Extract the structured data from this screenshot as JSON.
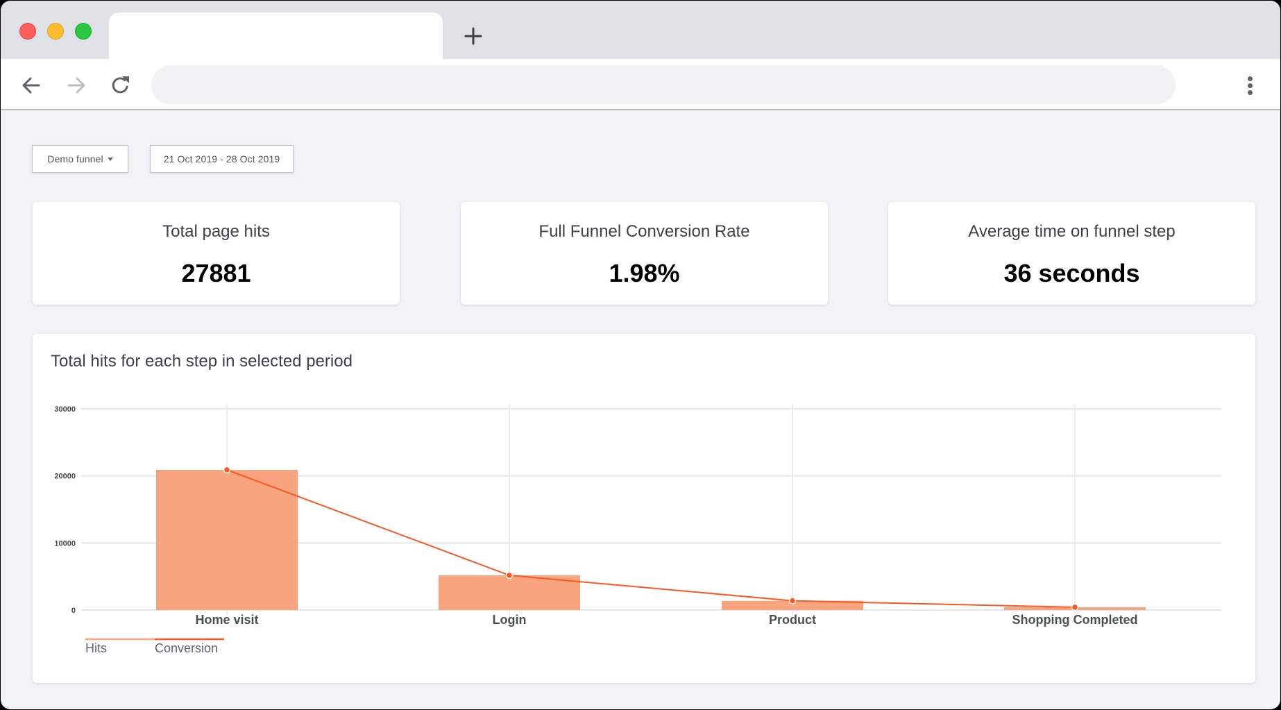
{
  "browser": {
    "traffic_lights": [
      {
        "name": "close",
        "color": "#ff5f57"
      },
      {
        "name": "minimize",
        "color": "#febc2e"
      },
      {
        "name": "maximize",
        "color": "#28c840"
      }
    ],
    "tab_title": "",
    "new_tab_icon": "plus-icon",
    "back_icon": "arrow-left-icon",
    "forward_icon": "arrow-right-icon",
    "reload_icon": "reload-icon",
    "address_bar": {
      "value": "",
      "placeholder": ""
    },
    "menu_icon": "kebab-menu-icon"
  },
  "filters": {
    "funnel_select": "Demo funnel",
    "date_range": "21 Oct 2019 - 28 Oct 2019"
  },
  "stats": [
    {
      "label": "Total page hits",
      "value": "27881"
    },
    {
      "label": "Full Funnel Conversion Rate",
      "value": "1.98%"
    },
    {
      "label": "Average time on funnel step",
      "value": "36 seconds"
    }
  ],
  "chart": {
    "title": "Total hits for each step in selected period",
    "legend": [
      {
        "label": "Hits",
        "color": "#f8a47f"
      },
      {
        "label": "Conversion",
        "color": "#fc5722"
      }
    ]
  },
  "chart_data": {
    "type": "bar",
    "title": "Total hits for each step in selected period",
    "xlabel": "",
    "ylabel": "",
    "categories": [
      "Home visit",
      "Login",
      "Product",
      "Shopping Completed"
    ],
    "series": [
      {
        "name": "Hits",
        "type": "bar",
        "color": "#f8a47f",
        "values": [
          20900,
          5180,
          1380,
          421
        ]
      },
      {
        "name": "Conversion",
        "type": "line",
        "color": "#fc5722",
        "values": [
          20900,
          5180,
          1380,
          421
        ]
      }
    ],
    "yticks": [
      0,
      10000,
      20000,
      30000
    ],
    "ylim": [
      0,
      30000
    ],
    "grid": true,
    "legend_position": "bottom-left"
  }
}
